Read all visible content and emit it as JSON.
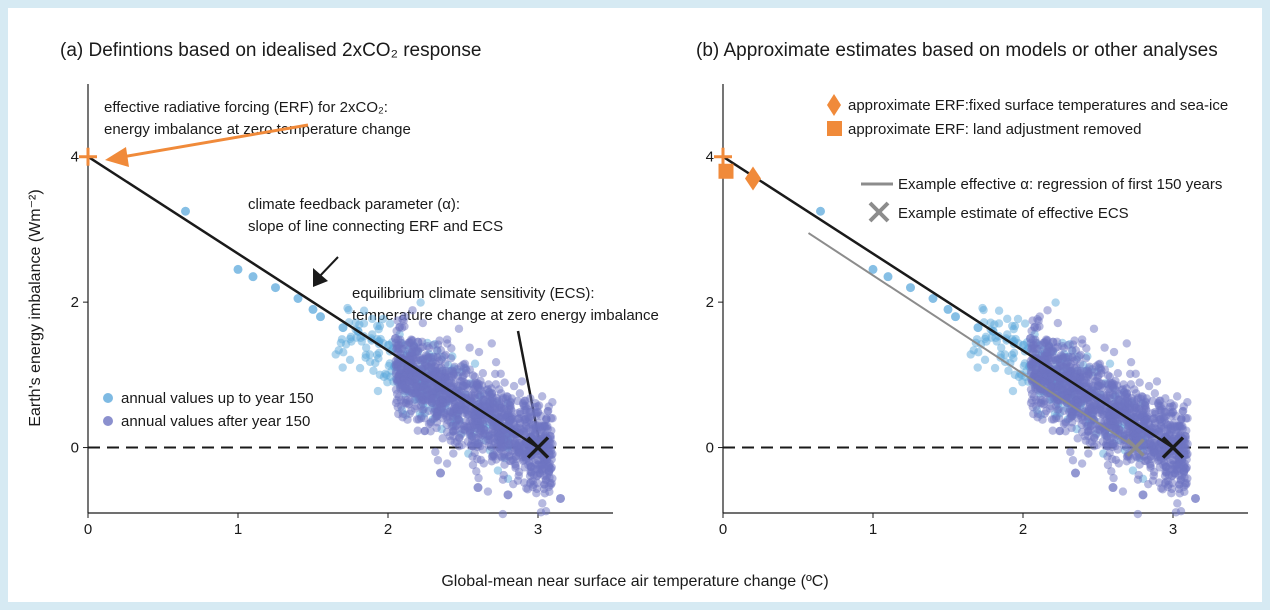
{
  "colors": {
    "early": "#5ea9dc",
    "late": "#6e74c2",
    "erf": "#f08a3a",
    "regression": "#8c8c8c",
    "ecs_marker": "#1a1a1a",
    "frame_background": "#d6eaf3"
  },
  "figure": {
    "xlabel": "Global-mean near surface air temperature change (ºC)",
    "ylabel": "Earth's energy imbalance (Wm⁻²)"
  },
  "chart_data": [
    {
      "type": "scatter",
      "title": "(a) Defintions based on idealised 2xCO₂ response",
      "xlim": [
        0,
        3.5
      ],
      "ylim": [
        -0.9,
        5
      ],
      "xticks": [
        0,
        1,
        2,
        3
      ],
      "yticks": [
        0,
        2,
        4
      ],
      "grid": false,
      "zero_line": "dashed",
      "series": [
        {
          "name": "annual values up to year 150",
          "color_key": "early",
          "x": [
            0.65,
            1.0,
            1.1,
            1.25,
            1.4,
            1.5,
            1.55,
            1.7,
            1.8
          ],
          "y": [
            3.25,
            2.45,
            2.35,
            2.2,
            2.05,
            1.9,
            1.8,
            1.65,
            1.6
          ]
        },
        {
          "name": "annual values after year 150",
          "color_key": "late",
          "x": [
            2.05,
            2.2,
            2.5,
            2.8,
            2.95,
            3.15,
            2.6,
            2.35
          ],
          "y": [
            1.5,
            1.45,
            0.85,
            -0.65,
            0.15,
            -0.7,
            -0.55,
            -0.35
          ]
        }
      ],
      "lines": [
        {
          "name": "climate feedback line",
          "x": [
            0,
            3.0
          ],
          "y": [
            4.0,
            0.0
          ]
        }
      ],
      "markers": [
        {
          "name": "ERF",
          "shape": "plus",
          "x": 0,
          "y": 4.0,
          "color_key": "erf"
        },
        {
          "name": "ECS",
          "shape": "x",
          "x": 3.0,
          "y": 0.0,
          "color_key": "ecs_marker"
        }
      ],
      "annotations": {
        "erf_line1": "effective radiative forcing (ERF) for 2xCO₂:",
        "erf_line2": "energy imbalance at zero temperature change",
        "feedback_line1": "climate feedback parameter (α):",
        "feedback_line2": "slope of line connecting ERF and ECS",
        "ecs_line1": "equilibrium climate sensitivity (ECS):",
        "ecs_line2": "temperature change at zero energy imbalance"
      },
      "legend": {
        "placement": "lower-left",
        "items": [
          {
            "label": "annual values up to year 150",
            "color_key": "early"
          },
          {
            "label": "annual values after year 150",
            "color_key": "late"
          }
        ]
      }
    },
    {
      "type": "scatter",
      "title": "(b) Approximate estimates based on models or other analyses",
      "xlim": [
        0,
        3.5
      ],
      "ylim": [
        -0.9,
        5
      ],
      "xticks": [
        0,
        1,
        2,
        3
      ],
      "yticks": [
        0,
        2,
        4
      ],
      "grid": false,
      "zero_line": "dashed",
      "series": [
        {
          "name": "annual values up to year 150",
          "color_key": "early",
          "x": [
            0.65,
            1.0,
            1.1,
            1.25,
            1.4,
            1.5,
            1.55,
            1.7,
            1.8
          ],
          "y": [
            3.25,
            2.45,
            2.35,
            2.2,
            2.05,
            1.9,
            1.8,
            1.65,
            1.6
          ]
        },
        {
          "name": "annual values after year 150",
          "color_key": "late",
          "x": [
            2.05,
            2.2,
            2.5,
            2.8,
            2.95,
            3.15,
            2.6,
            2.35
          ],
          "y": [
            1.5,
            1.45,
            0.85,
            -0.65,
            0.15,
            -0.7,
            -0.55,
            -0.35
          ]
        }
      ],
      "lines": [
        {
          "name": "climate feedback line",
          "x": [
            0,
            3.0
          ],
          "y": [
            4.0,
            0.0
          ]
        },
        {
          "name": "Example effective α: regression of first 150 years",
          "x": [
            0.57,
            2.75
          ],
          "y": [
            2.95,
            0.0
          ],
          "color_key": "regression"
        }
      ],
      "markers": [
        {
          "name": "ERF",
          "shape": "plus",
          "x": 0,
          "y": 4.0,
          "color_key": "erf"
        },
        {
          "name": "approximate ERF:fixed surface temperatures and sea-ice",
          "shape": "diamond",
          "x": 0.2,
          "y": 3.7,
          "color_key": "erf"
        },
        {
          "name": "approximate ERF: land adjustment removed",
          "shape": "square",
          "x": 0.02,
          "y": 3.8,
          "color_key": "erf"
        },
        {
          "name": "ECS",
          "shape": "x",
          "x": 3.0,
          "y": 0.0,
          "color_key": "ecs_marker"
        },
        {
          "name": "Example estimate of effective ECS",
          "shape": "x",
          "x": 2.75,
          "y": 0.0,
          "color_key": "regression"
        }
      ],
      "legend": {
        "placement": "top-right",
        "items": [
          {
            "label": "approximate ERF:fixed surface temperatures and sea-ice",
            "shape": "diamond",
            "color_key": "erf"
          },
          {
            "label": "approximate ERF: land adjustment removed",
            "shape": "square",
            "color_key": "erf"
          },
          {
            "label": "Example effective α: regression of first 150 years",
            "shape": "line",
            "color_key": "regression"
          },
          {
            "label": "Example estimate of effective ECS",
            "shape": "x",
            "color_key": "regression"
          }
        ]
      }
    }
  ]
}
